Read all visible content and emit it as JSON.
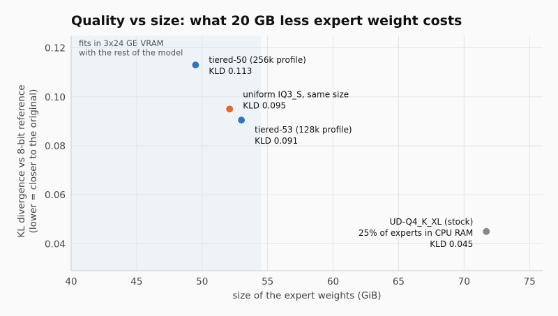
{
  "chart_data": {
    "type": "scatter",
    "title": "Quality vs size: what 20 GB less expert weight costs",
    "xlabel": "size of the expert weights (GiB)",
    "ylabel_lines": [
      "KL divergence vs 8-bit reference",
      "(lower = closer to the original)"
    ],
    "xlim": [
      40,
      76
    ],
    "ylim": [
      0.029,
      0.125
    ],
    "x_ticks": [
      40,
      45,
      50,
      55,
      60,
      65,
      70,
      75
    ],
    "y_ticks": [
      0.04,
      0.06,
      0.08,
      0.1,
      0.12
    ],
    "y_tick_labels": [
      "0.04",
      "0.06",
      "0.08",
      "0.10",
      "0.12"
    ],
    "grid": true,
    "shaded_region": {
      "x_range": [
        40,
        54.5
      ],
      "color": "#eef3f8",
      "label_lines": [
        "fits in 3x24 GB VRAM",
        "with the rest of the model"
      ]
    },
    "points": [
      {
        "x": 49.5,
        "y": 0.113,
        "color": "#2f74c0",
        "label_lines": [
          "tiered-50 (256k profile)",
          "KLD 0.113"
        ],
        "label_side": "right"
      },
      {
        "x": 52.1,
        "y": 0.095,
        "color": "#e26a3a",
        "label_lines": [
          "uniform IQ3_S, same size",
          "KLD 0.095"
        ],
        "label_side": "right-above"
      },
      {
        "x": 53.0,
        "y": 0.0905,
        "color": "#2f74c0",
        "label_lines": [
          "tiered-53 (128k profile)",
          "KLD 0.091"
        ],
        "label_side": "right-below"
      },
      {
        "x": 71.7,
        "y": 0.045,
        "color": "#888888",
        "label_lines": [
          "UD-Q4_K_XL (stock)",
          "25% of experts in CPU RAM",
          "KLD 0.045"
        ],
        "label_side": "left"
      }
    ]
  }
}
